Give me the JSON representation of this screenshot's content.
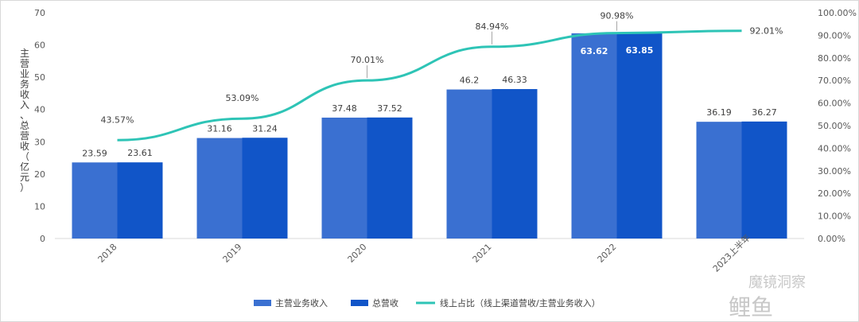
{
  "chart_data": {
    "type": "bar",
    "categories": [
      "2018",
      "2019",
      "2020",
      "2021",
      "2022",
      "2023上半年"
    ],
    "series": [
      {
        "name": "主营业务收入",
        "kind": "bar",
        "axis": "left",
        "color": "#3a70d1",
        "values": [
          23.59,
          31.16,
          37.48,
          46.2,
          63.62,
          36.19
        ],
        "labels": [
          "23.59",
          "31.16",
          "37.48",
          "46.2",
          "63.62",
          "36.19"
        ]
      },
      {
        "name": "总营收",
        "kind": "bar",
        "axis": "left",
        "color": "#1155c8",
        "values": [
          23.61,
          31.24,
          37.52,
          46.33,
          63.85,
          36.27
        ],
        "labels": [
          "23.61",
          "31.24",
          "37.52",
          "46.33",
          "63.85",
          "36.27"
        ]
      },
      {
        "name": "线上占比（线上渠道营收/主营业务收入）",
        "kind": "line",
        "axis": "right",
        "color": "#2ec4b6",
        "values": [
          43.57,
          53.09,
          70.01,
          84.94,
          90.98,
          92.01
        ],
        "labels": [
          "43.57%",
          "53.09%",
          "70.01%",
          "84.94%",
          "90.98%",
          "92.01%"
        ]
      }
    ],
    "ylabel": "主营业务收入、总营收（亿元）",
    "ylim": [
      0,
      70
    ],
    "yticks": [
      "0",
      "10",
      "20",
      "30",
      "40",
      "50",
      "60",
      "70"
    ],
    "y2lim": [
      0,
      100
    ],
    "y2ticks": [
      "0.00%",
      "10.00%",
      "20.00%",
      "30.00%",
      "40.00%",
      "50.00%",
      "60.00%",
      "70.00%",
      "80.00%",
      "90.00%",
      "100.00%"
    ],
    "legend_position": "bottom",
    "grid": false
  },
  "watermark": {
    "text1": "魔镜洞察",
    "text2": "鲤鱼"
  }
}
